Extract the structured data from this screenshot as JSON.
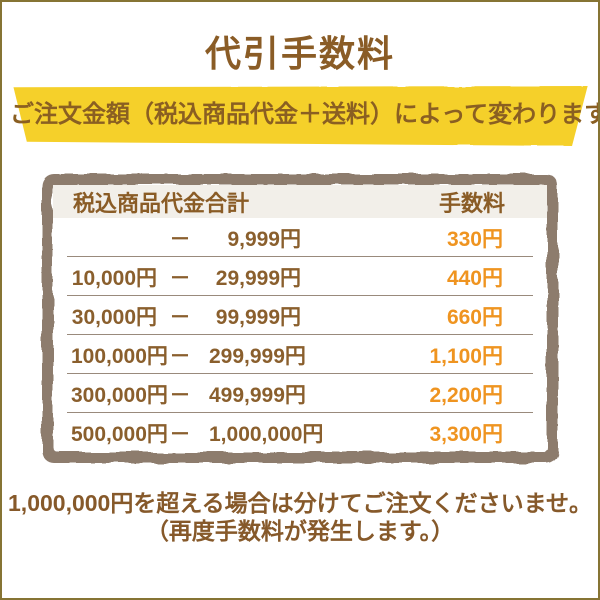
{
  "page": {
    "title": "代引手数料",
    "banner": {
      "text": "ご注文金額（税込商品代金＋送料）によって変わります。"
    },
    "table": {
      "header": {
        "range_label": "税込商品代金合計",
        "fee_label": "手数料"
      },
      "rows": [
        {
          "lower": "",
          "dash": "－",
          "upper": "9,999円",
          "fee": "330円"
        },
        {
          "lower": "10,000円",
          "dash": "－",
          "upper": "29,999円",
          "fee": "440円"
        },
        {
          "lower": "30,000円",
          "dash": "－",
          "upper": "99,999円",
          "fee": "660円"
        },
        {
          "lower": "100,000円",
          "dash": "－",
          "upper": "299,999円",
          "fee": "1,100円"
        },
        {
          "lower": "300,000円",
          "dash": "－",
          "upper": "499,999円",
          "fee": "2,200円"
        },
        {
          "lower": "500,000円",
          "dash": "－",
          "upper": "1,000,000円",
          "fee": "3,300円"
        }
      ]
    },
    "footer": {
      "line1": "1,000,000円を超える場合は分けてご注文くださいませ。",
      "line2": "（再度手数料が発生します。）"
    },
    "colors": {
      "accent_yellow": "#f5d02b",
      "text_brown": "#8a5c26",
      "fee_orange": "#ef9420",
      "table_border": "#8d7b6d",
      "header_bg": "#f2efe9",
      "page_border": "#867434"
    }
  }
}
